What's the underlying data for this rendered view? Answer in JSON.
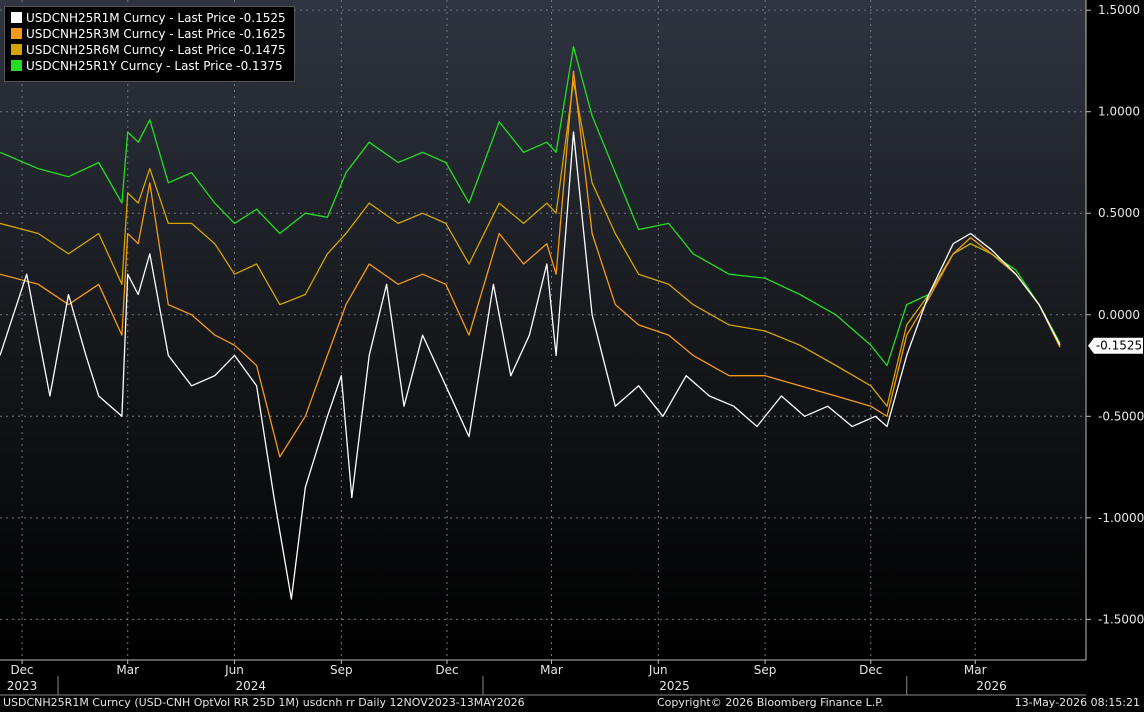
{
  "chart_data": {
    "type": "line",
    "title": "",
    "x_range": [
      "2023-11-12",
      "2026-05-13"
    ],
    "ylim": [
      -1.7,
      1.55
    ],
    "y_ticks": [
      "1.5000",
      "1.0000",
      "0.5000",
      "0.0000",
      "-0.5000",
      "-1.0000",
      "-1.5000"
    ],
    "y_tick_values": [
      1.5,
      1.0,
      0.5,
      0.0,
      -0.5,
      -1.0,
      -1.5
    ],
    "x_ticks": [
      {
        "label": "Dec",
        "date": "2023-12-01"
      },
      {
        "label": "Mar",
        "date": "2024-03-01"
      },
      {
        "label": "Jun",
        "date": "2024-06-01"
      },
      {
        "label": "Sep",
        "date": "2024-09-01"
      },
      {
        "label": "Dec",
        "date": "2024-12-01"
      },
      {
        "label": "Mar",
        "date": "2025-03-01"
      },
      {
        "label": "Jun",
        "date": "2025-06-01"
      },
      {
        "label": "Sep",
        "date": "2025-09-01"
      },
      {
        "label": "Dec",
        "date": "2025-12-01"
      },
      {
        "label": "Mar",
        "date": "2026-03-01"
      }
    ],
    "year_ticks": [
      {
        "label": "2023",
        "date": "2023-12-01"
      },
      {
        "label": "2024",
        "date": "2024-06-15"
      },
      {
        "label": "2025",
        "date": "2025-06-15"
      },
      {
        "label": "2026",
        "date": "2026-03-15"
      }
    ],
    "year_separators": [
      "2024-01-01",
      "2025-01-01",
      "2026-01-01"
    ],
    "grid": true,
    "legend_position": "top-left",
    "last_value_label": "-0.1525",
    "last_value": -0.1525,
    "series": [
      {
        "name": "USDCNH25R1Y Curncy - Last Price -0.1375",
        "color": "#22dd22",
        "points": [
          [
            "2023-11-12",
            0.8
          ],
          [
            "2023-12-15",
            0.72
          ],
          [
            "2024-01-10",
            0.68
          ],
          [
            "2024-02-05",
            0.75
          ],
          [
            "2024-02-25",
            0.55
          ],
          [
            "2024-03-01",
            0.9
          ],
          [
            "2024-03-10",
            0.85
          ],
          [
            "2024-03-20",
            0.96
          ],
          [
            "2024-04-05",
            0.65
          ],
          [
            "2024-04-25",
            0.7
          ],
          [
            "2024-05-15",
            0.55
          ],
          [
            "2024-06-01",
            0.45
          ],
          [
            "2024-06-20",
            0.52
          ],
          [
            "2024-07-10",
            0.4
          ],
          [
            "2024-08-01",
            0.5
          ],
          [
            "2024-08-20",
            0.48
          ],
          [
            "2024-09-05",
            0.7
          ],
          [
            "2024-09-25",
            0.85
          ],
          [
            "2024-10-20",
            0.75
          ],
          [
            "2024-11-10",
            0.8
          ],
          [
            "2024-11-30",
            0.75
          ],
          [
            "2024-12-20",
            0.55
          ],
          [
            "2025-01-15",
            0.95
          ],
          [
            "2025-02-05",
            0.8
          ],
          [
            "2025-02-25",
            0.85
          ],
          [
            "2025-03-05",
            0.8
          ],
          [
            "2025-03-20",
            1.32
          ],
          [
            "2025-04-05",
            0.98
          ],
          [
            "2025-04-25",
            0.7
          ],
          [
            "2025-05-15",
            0.42
          ],
          [
            "2025-06-10",
            0.45
          ],
          [
            "2025-07-01",
            0.3
          ],
          [
            "2025-08-01",
            0.2
          ],
          [
            "2025-09-01",
            0.18
          ],
          [
            "2025-10-01",
            0.1
          ],
          [
            "2025-11-01",
            0.0
          ],
          [
            "2025-12-01",
            -0.15
          ],
          [
            "2025-12-15",
            -0.25
          ],
          [
            "2026-01-01",
            0.05
          ],
          [
            "2026-01-20",
            0.1
          ],
          [
            "2026-02-10",
            0.3
          ],
          [
            "2026-02-25",
            0.35
          ],
          [
            "2026-03-15",
            0.3
          ],
          [
            "2026-04-05",
            0.22
          ],
          [
            "2026-04-25",
            0.05
          ],
          [
            "2026-05-13",
            -0.14
          ]
        ]
      },
      {
        "name": "USDCNH25R6M Curncy - Last Price -0.1475",
        "color": "#d4a400",
        "points": [
          [
            "2023-11-12",
            0.45
          ],
          [
            "2023-12-15",
            0.4
          ],
          [
            "2024-01-10",
            0.3
          ],
          [
            "2024-02-05",
            0.4
          ],
          [
            "2024-02-25",
            0.15
          ],
          [
            "2024-03-01",
            0.6
          ],
          [
            "2024-03-10",
            0.55
          ],
          [
            "2024-03-20",
            0.72
          ],
          [
            "2024-04-05",
            0.45
          ],
          [
            "2024-04-25",
            0.45
          ],
          [
            "2024-05-15",
            0.35
          ],
          [
            "2024-06-01",
            0.2
          ],
          [
            "2024-06-20",
            0.25
          ],
          [
            "2024-07-10",
            0.05
          ],
          [
            "2024-08-01",
            0.1
          ],
          [
            "2024-08-20",
            0.3
          ],
          [
            "2024-09-05",
            0.4
          ],
          [
            "2024-09-25",
            0.55
          ],
          [
            "2024-10-20",
            0.45
          ],
          [
            "2024-11-10",
            0.5
          ],
          [
            "2024-11-30",
            0.45
          ],
          [
            "2024-12-20",
            0.25
          ],
          [
            "2025-01-15",
            0.55
          ],
          [
            "2025-02-05",
            0.45
          ],
          [
            "2025-02-25",
            0.55
          ],
          [
            "2025-03-05",
            0.5
          ],
          [
            "2025-03-20",
            1.15
          ],
          [
            "2025-04-05",
            0.65
          ],
          [
            "2025-04-25",
            0.4
          ],
          [
            "2025-05-15",
            0.2
          ],
          [
            "2025-06-10",
            0.15
          ],
          [
            "2025-07-01",
            0.05
          ],
          [
            "2025-08-01",
            -0.05
          ],
          [
            "2025-09-01",
            -0.08
          ],
          [
            "2025-10-01",
            -0.15
          ],
          [
            "2025-11-01",
            -0.25
          ],
          [
            "2025-12-01",
            -0.35
          ],
          [
            "2025-12-15",
            -0.45
          ],
          [
            "2026-01-01",
            -0.05
          ],
          [
            "2026-01-20",
            0.1
          ],
          [
            "2026-02-10",
            0.3
          ],
          [
            "2026-02-25",
            0.35
          ],
          [
            "2026-03-15",
            0.3
          ],
          [
            "2026-04-05",
            0.2
          ],
          [
            "2026-04-25",
            0.05
          ],
          [
            "2026-05-13",
            -0.15
          ]
        ]
      },
      {
        "name": "USDCNH25R3M Curncy - Last Price -0.1625",
        "color": "#f59a18",
        "points": [
          [
            "2023-11-12",
            0.2
          ],
          [
            "2023-12-15",
            0.15
          ],
          [
            "2024-01-10",
            0.05
          ],
          [
            "2024-02-05",
            0.15
          ],
          [
            "2024-02-25",
            -0.1
          ],
          [
            "2024-03-01",
            0.4
          ],
          [
            "2024-03-10",
            0.35
          ],
          [
            "2024-03-20",
            0.65
          ],
          [
            "2024-04-05",
            0.05
          ],
          [
            "2024-04-25",
            0.0
          ],
          [
            "2024-05-15",
            -0.1
          ],
          [
            "2024-06-01",
            -0.15
          ],
          [
            "2024-06-20",
            -0.25
          ],
          [
            "2024-07-10",
            -0.7
          ],
          [
            "2024-08-01",
            -0.5
          ],
          [
            "2024-08-20",
            -0.2
          ],
          [
            "2024-09-05",
            0.05
          ],
          [
            "2024-09-25",
            0.25
          ],
          [
            "2024-10-20",
            0.15
          ],
          [
            "2024-11-10",
            0.2
          ],
          [
            "2024-11-30",
            0.15
          ],
          [
            "2024-12-20",
            -0.1
          ],
          [
            "2025-01-15",
            0.4
          ],
          [
            "2025-02-05",
            0.25
          ],
          [
            "2025-02-25",
            0.35
          ],
          [
            "2025-03-05",
            0.2
          ],
          [
            "2025-03-20",
            1.2
          ],
          [
            "2025-04-05",
            0.4
          ],
          [
            "2025-04-25",
            0.05
          ],
          [
            "2025-05-15",
            -0.05
          ],
          [
            "2025-06-10",
            -0.1
          ],
          [
            "2025-07-01",
            -0.2
          ],
          [
            "2025-08-01",
            -0.3
          ],
          [
            "2025-09-01",
            -0.3
          ],
          [
            "2025-10-01",
            -0.35
          ],
          [
            "2025-11-01",
            -0.4
          ],
          [
            "2025-12-01",
            -0.45
          ],
          [
            "2025-12-15",
            -0.5
          ],
          [
            "2026-01-01",
            -0.1
          ],
          [
            "2026-01-20",
            0.08
          ],
          [
            "2026-02-10",
            0.3
          ],
          [
            "2026-02-25",
            0.38
          ],
          [
            "2026-03-15",
            0.3
          ],
          [
            "2026-04-05",
            0.2
          ],
          [
            "2026-04-25",
            0.05
          ],
          [
            "2026-05-13",
            -0.16
          ]
        ]
      },
      {
        "name": "USDCNH25R1M Curncy - Last Price -0.1525",
        "color": "#ffffff",
        "points": [
          [
            "2023-11-12",
            -0.2
          ],
          [
            "2023-12-05",
            0.2
          ],
          [
            "2023-12-25",
            -0.4
          ],
          [
            "2024-01-10",
            0.1
          ],
          [
            "2024-01-25",
            -0.2
          ],
          [
            "2024-02-05",
            -0.4
          ],
          [
            "2024-02-25",
            -0.5
          ],
          [
            "2024-03-01",
            0.2
          ],
          [
            "2024-03-10",
            0.1
          ],
          [
            "2024-03-20",
            0.3
          ],
          [
            "2024-04-05",
            -0.2
          ],
          [
            "2024-04-25",
            -0.35
          ],
          [
            "2024-05-15",
            -0.3
          ],
          [
            "2024-06-01",
            -0.2
          ],
          [
            "2024-06-20",
            -0.35
          ],
          [
            "2024-07-05",
            -0.9
          ],
          [
            "2024-07-20",
            -1.4
          ],
          [
            "2024-08-01",
            -0.85
          ],
          [
            "2024-08-20",
            -0.5
          ],
          [
            "2024-09-01",
            -0.3
          ],
          [
            "2024-09-10",
            -0.9
          ],
          [
            "2024-09-25",
            -0.2
          ],
          [
            "2024-10-10",
            0.15
          ],
          [
            "2024-10-25",
            -0.45
          ],
          [
            "2024-11-10",
            -0.1
          ],
          [
            "2024-11-30",
            -0.35
          ],
          [
            "2024-12-20",
            -0.6
          ],
          [
            "2025-01-10",
            0.15
          ],
          [
            "2025-01-25",
            -0.3
          ],
          [
            "2025-02-10",
            -0.1
          ],
          [
            "2025-02-25",
            0.25
          ],
          [
            "2025-03-05",
            -0.2
          ],
          [
            "2025-03-20",
            0.9
          ],
          [
            "2025-04-05",
            0.0
          ],
          [
            "2025-04-25",
            -0.45
          ],
          [
            "2025-05-15",
            -0.35
          ],
          [
            "2025-06-05",
            -0.5
          ],
          [
            "2025-06-25",
            -0.3
          ],
          [
            "2025-07-15",
            -0.4
          ],
          [
            "2025-08-05",
            -0.45
          ],
          [
            "2025-08-25",
            -0.55
          ],
          [
            "2025-09-15",
            -0.4
          ],
          [
            "2025-10-05",
            -0.5
          ],
          [
            "2025-10-25",
            -0.45
          ],
          [
            "2025-11-15",
            -0.55
          ],
          [
            "2025-12-05",
            -0.5
          ],
          [
            "2025-12-15",
            -0.55
          ],
          [
            "2026-01-01",
            -0.2
          ],
          [
            "2026-01-20",
            0.1
          ],
          [
            "2026-02-10",
            0.35
          ],
          [
            "2026-02-25",
            0.4
          ],
          [
            "2026-03-15",
            0.32
          ],
          [
            "2026-04-05",
            0.2
          ],
          [
            "2026-04-25",
            0.05
          ],
          [
            "2026-05-13",
            -0.15
          ]
        ]
      }
    ]
  },
  "legend": [
    {
      "label": "USDCNH25R1M Curncy  - Last Price -0.1525",
      "color": "#ffffff"
    },
    {
      "label": "USDCNH25R3M Curncy  - Last Price -0.1625",
      "color": "#f59a18"
    },
    {
      "label": "USDCNH25R6M Curncy  - Last Price -0.1475",
      "color": "#d4a400"
    },
    {
      "label": "USDCNH25R1Y Curncy  - Last Price -0.1375",
      "color": "#22dd22"
    }
  ],
  "footer": {
    "left": "USDCNH25R1M Curncy (USD-CNH OptVol RR 25D 1M) usdcnh rr Daily 12NOV2023-13MAY2026",
    "center": "Copyright© 2026 Bloomberg Finance L.P.",
    "right": "13-May-2026 08:15:21"
  }
}
